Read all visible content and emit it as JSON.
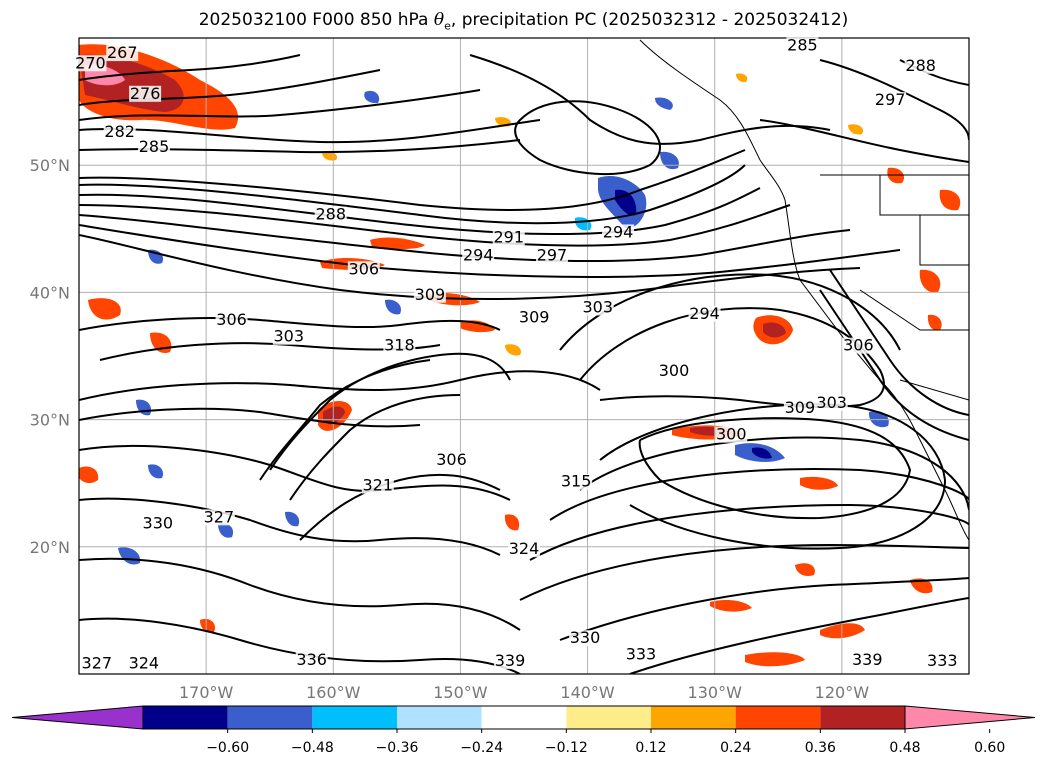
{
  "title": {
    "prefix": "2025032100 F000 850 hPa ",
    "theta_symbol": "θ",
    "theta_sub": "e",
    "suffix": ", precipitation PC (2025032312 - 2025032412)"
  },
  "map": {
    "projection": "lat-lon",
    "lon_range": [
      -180,
      -110
    ],
    "lat_range": [
      10,
      60
    ],
    "lat_labels": [
      "20°N",
      "30°N",
      "40°N",
      "50°N"
    ],
    "lon_labels": [
      "170°W",
      "160°W",
      "150°W",
      "140°W",
      "130°W",
      "120°W"
    ],
    "grid": true,
    "contour_color": "#000000",
    "coastline_color": "#000000"
  },
  "contour_labels": [
    {
      "text": "267",
      "lon": -176.6,
      "lat": 58.5
    },
    {
      "text": "270",
      "lon": -179.1,
      "lat": 57.7
    },
    {
      "text": "276",
      "lon": -174.8,
      "lat": 55.3
    },
    {
      "text": "282",
      "lon": -176.8,
      "lat": 52.3
    },
    {
      "text": "285",
      "lon": -174.1,
      "lat": 51.1
    },
    {
      "text": "288",
      "lon": -160.2,
      "lat": 45.8
    },
    {
      "text": "291",
      "lon": -146.2,
      "lat": 44.0
    },
    {
      "text": "294",
      "lon": -148.6,
      "lat": 42.6
    },
    {
      "text": "297",
      "lon": -142.8,
      "lat": 42.6
    },
    {
      "text": "294",
      "lon": -137.6,
      "lat": 44.4
    },
    {
      "text": "306",
      "lon": -157.6,
      "lat": 41.5
    },
    {
      "text": "309",
      "lon": -152.4,
      "lat": 39.5
    },
    {
      "text": "309",
      "lon": -144.2,
      "lat": 37.7
    },
    {
      "text": "303",
      "lon": -139.2,
      "lat": 38.5
    },
    {
      "text": "294",
      "lon": -130.8,
      "lat": 38.0
    },
    {
      "text": "303",
      "lon": -163.5,
      "lat": 36.2
    },
    {
      "text": "306",
      "lon": -168.0,
      "lat": 37.5
    },
    {
      "text": "318",
      "lon": -154.8,
      "lat": 35.5
    },
    {
      "text": "300",
      "lon": -133.2,
      "lat": 33.5
    },
    {
      "text": "300",
      "lon": -128.7,
      "lat": 28.5
    },
    {
      "text": "309",
      "lon": -123.3,
      "lat": 30.6
    },
    {
      "text": "303",
      "lon": -120.8,
      "lat": 31.0
    },
    {
      "text": "306",
      "lon": -118.7,
      "lat": 35.5
    },
    {
      "text": "297",
      "lon": -116.2,
      "lat": 54.8
    },
    {
      "text": "306",
      "lon": -150.7,
      "lat": 26.5
    },
    {
      "text": "315",
      "lon": -140.9,
      "lat": 24.8
    },
    {
      "text": "321",
      "lon": -156.5,
      "lat": 24.5
    },
    {
      "text": "327",
      "lon": -169.0,
      "lat": 22.0
    },
    {
      "text": "330",
      "lon": -173.8,
      "lat": 21.5
    },
    {
      "text": "324",
      "lon": -145.0,
      "lat": 19.5
    },
    {
      "text": "330",
      "lon": -140.2,
      "lat": 12.5
    },
    {
      "text": "333",
      "lon": -135.8,
      "lat": 11.2
    },
    {
      "text": "339",
      "lon": -146.1,
      "lat": 10.7
    },
    {
      "text": "339",
      "lon": -118.0,
      "lat": 10.8
    },
    {
      "text": "333",
      "lon": -112.1,
      "lat": 10.7
    },
    {
      "text": "324",
      "lon": -174.9,
      "lat": 10.5
    },
    {
      "text": "327",
      "lon": -178.6,
      "lat": 10.5
    },
    {
      "text": "336",
      "lon": -161.7,
      "lat": 10.8
    },
    {
      "text": "285",
      "lon": -123.1,
      "lat": 59.1
    },
    {
      "text": "288",
      "lon": -113.8,
      "lat": 57.5
    }
  ],
  "colorbar": {
    "extend": "both",
    "tick_labels": [
      "−0.60",
      "−0.48",
      "−0.36",
      "−0.24",
      "−0.12",
      "0.12",
      "0.24",
      "0.36",
      "0.48",
      "0.60"
    ],
    "colors": [
      "#9932cc",
      "#00008b",
      "#3a5fcd",
      "#00bfff",
      "#b0e2ff",
      "#ffffff",
      "#ffec8b",
      "#ffa500",
      "#ff4500",
      "#b22222",
      "#ff88aa"
    ]
  }
}
